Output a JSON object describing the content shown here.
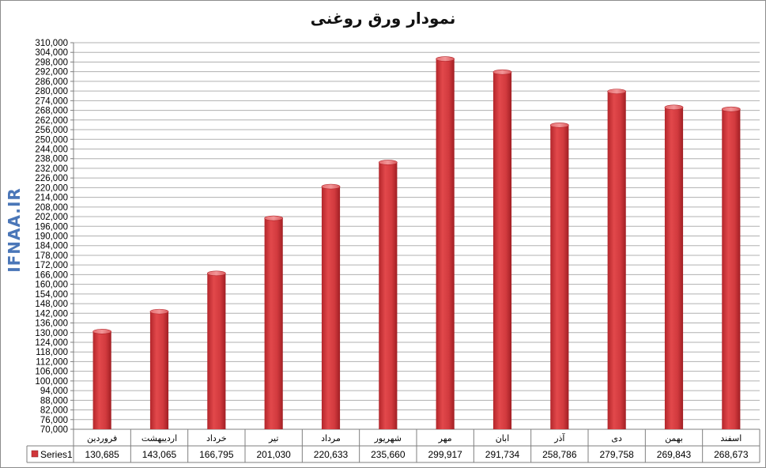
{
  "chart_data": {
    "type": "bar",
    "title": "نمودار ورق روغنی",
    "categories": [
      "فروردین",
      "اردیبهشت",
      "خرداد",
      "تیر",
      "مرداد",
      "شهریور",
      "مهر",
      "ابان",
      "آذر",
      "دی",
      "بهمن",
      "اسفند"
    ],
    "series": [
      {
        "name": "Series1",
        "values": [
          130685,
          143065,
          166795,
          201030,
          220633,
          235660,
          299917,
          291734,
          258786,
          279758,
          269843,
          268673
        ],
        "value_labels": [
          "130,685",
          "143,065",
          "166,795",
          "201,030",
          "220,633",
          "235,660",
          "299,917",
          "291,734",
          "258,786",
          "279,758",
          "269,843",
          "268,673"
        ],
        "color": "#d0363a"
      }
    ],
    "ylim": [
      70000,
      310000
    ],
    "y_step": 6000,
    "grid": true,
    "data_table": true,
    "xlabel": "",
    "ylabel": ""
  },
  "watermark": "IFNAA.IR"
}
